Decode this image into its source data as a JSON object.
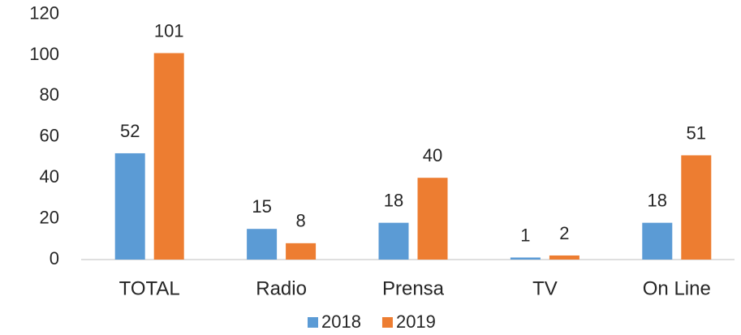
{
  "chart_data": {
    "type": "bar",
    "categories": [
      "TOTAL",
      "Radio",
      "Prensa",
      "TV",
      "On Line"
    ],
    "series": [
      {
        "name": "2018",
        "color": "#5b9bd5",
        "values": [
          52,
          15,
          18,
          1,
          18
        ]
      },
      {
        "name": "2019",
        "color": "#ed7d31",
        "values": [
          101,
          8,
          40,
          2,
          51
        ]
      }
    ],
    "ylim": [
      0,
      120
    ],
    "yticks": [
      0,
      20,
      40,
      60,
      80,
      100,
      120
    ],
    "grid": false,
    "legend": "bottom"
  }
}
